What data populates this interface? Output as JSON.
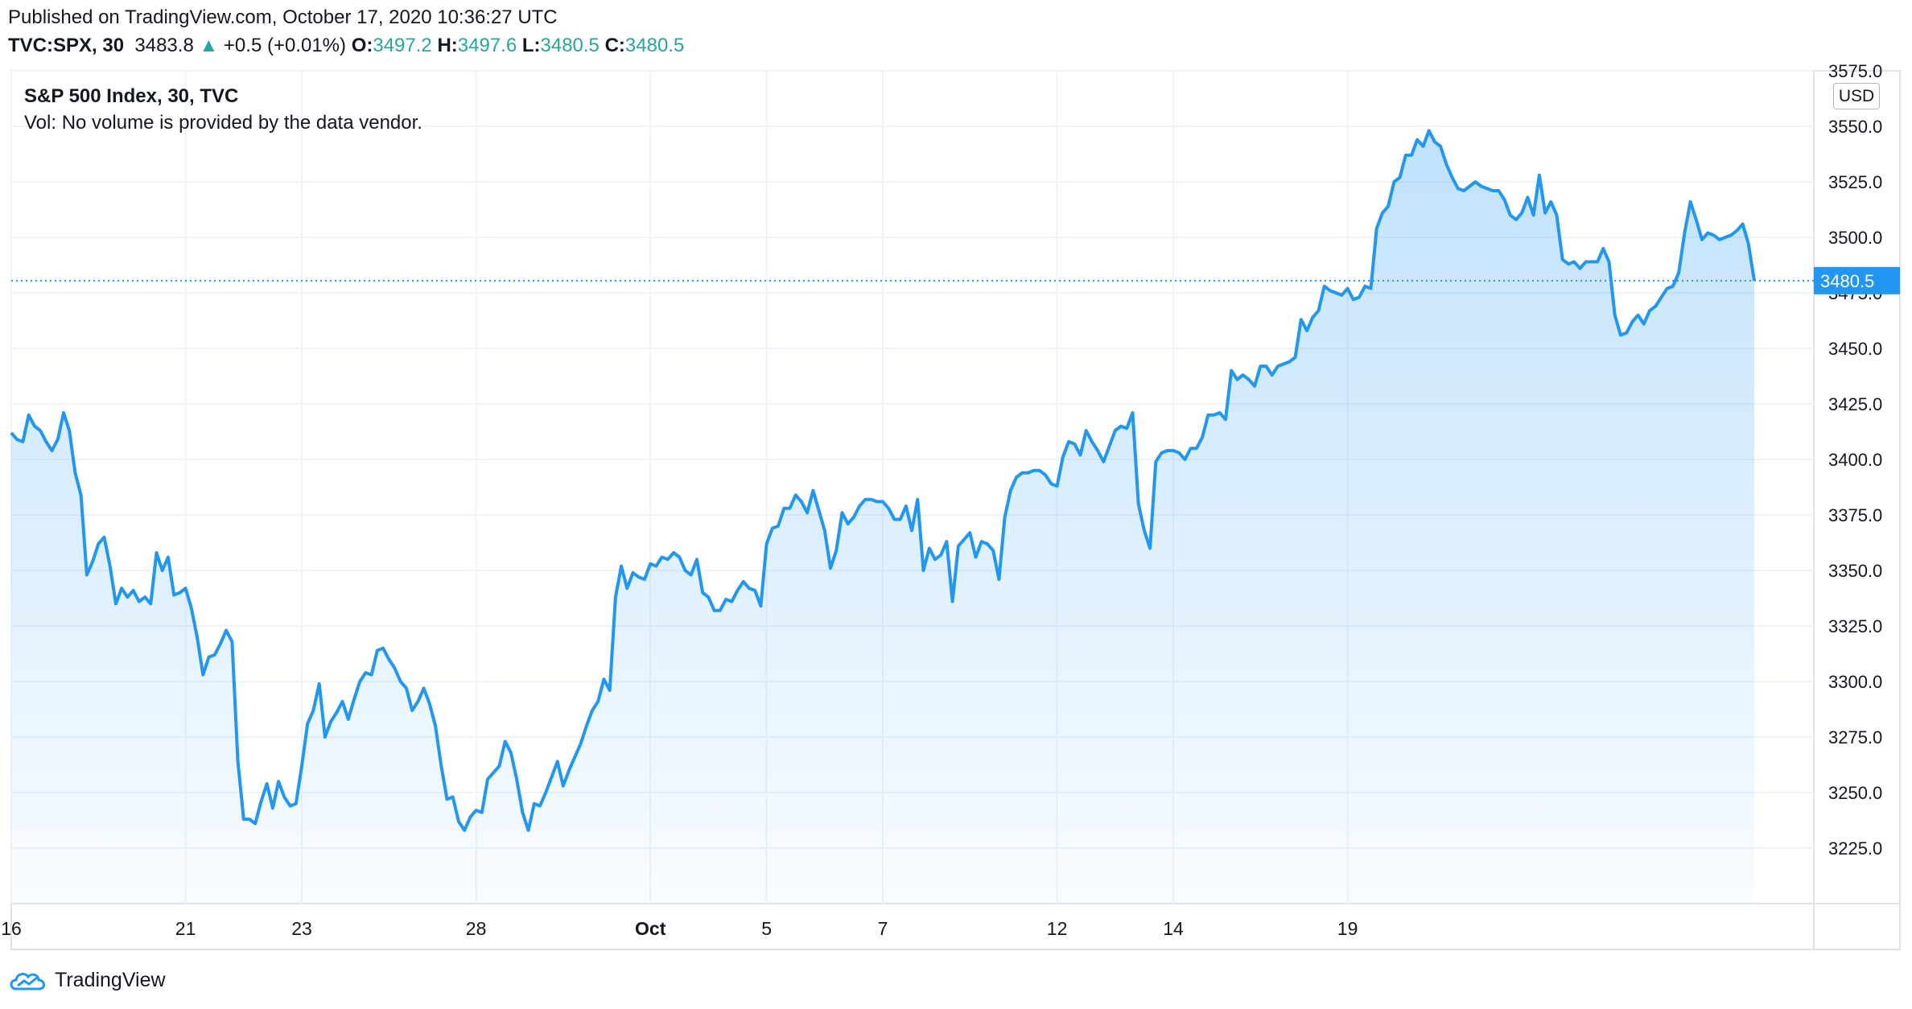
{
  "header": {
    "published": "Published on TradingView.com, October 17, 2020 10:36:27 UTC",
    "symbol": "TVC:SPX, 30",
    "last": "3483.8",
    "change": "+0.5 (+0.01%)",
    "o_label": "O:",
    "o_value": "3497.2",
    "h_label": "H:",
    "h_value": "3497.6",
    "l_label": "L:",
    "l_value": "3480.5",
    "c_label": "C:",
    "c_value": "3480.5"
  },
  "legend": {
    "title": "S&P 500 Index, 30, TVC",
    "volume": "Vol: No volume is provided by the data vendor."
  },
  "currency": "USD",
  "brand": "TradingView",
  "colors": {
    "line": "#2196f3",
    "fill": "#2196f3",
    "grid": "#f0f3fa",
    "up": "#26a69a",
    "text": "#131722"
  },
  "chart_data": {
    "type": "area",
    "ylim": [
      3200,
      3575
    ],
    "y_ticks": [
      "3225.0",
      "3250.0",
      "3275.0",
      "3300.0",
      "3325.0",
      "3350.0",
      "3375.0",
      "3400.0",
      "3425.0",
      "3450.0",
      "3475.0",
      "3500.0",
      "3525.0",
      "3550.0",
      "3575.0"
    ],
    "x_ticks": [
      {
        "label": "16",
        "i": 0
      },
      {
        "label": "21",
        "i": 30
      },
      {
        "label": "23",
        "i": 50
      },
      {
        "label": "28",
        "i": 80
      },
      {
        "label": "Oct",
        "i": 110
      },
      {
        "label": "5",
        "i": 130
      },
      {
        "label": "7",
        "i": 150
      },
      {
        "label": "12",
        "i": 180
      },
      {
        "label": "14",
        "i": 200
      },
      {
        "label": "19",
        "i": 230
      }
    ],
    "last_price": 3480.5,
    "last_price_label": "3480.5",
    "series": [
      {
        "values": [
          3412,
          3409,
          3408,
          3420,
          3415,
          3413,
          3408,
          3404,
          3409,
          3421,
          3413,
          3394,
          3384,
          3348,
          3354,
          3362,
          3365,
          3352,
          3335,
          3342,
          3338,
          3341,
          3336,
          3338,
          3335,
          3358,
          3350,
          3356,
          3339,
          3340,
          3342,
          3333,
          3320,
          3303,
          3311,
          3312,
          3317,
          3323,
          3318,
          3264,
          3238,
          3238,
          3236,
          3246,
          3254,
          3243,
          3255,
          3248,
          3244,
          3245,
          3262,
          3281,
          3287,
          3299,
          3275,
          3282,
          3286,
          3291,
          3283,
          3292,
          3300,
          3304,
          3303,
          3314,
          3315,
          3310,
          3306,
          3300,
          3297,
          3287,
          3291,
          3297,
          3290,
          3280,
          3262,
          3247,
          3248,
          3237,
          3233,
          3239,
          3242,
          3241,
          3256,
          3259,
          3262,
          3273,
          3268,
          3256,
          3241,
          3233,
          3245,
          3244,
          3250,
          3257,
          3264,
          3253,
          3260,
          3266,
          3272,
          3280,
          3287,
          3291,
          3301,
          3296,
          3338,
          3352,
          3342,
          3349,
          3347,
          3346,
          3353,
          3352,
          3356,
          3355,
          3358,
          3356,
          3350,
          3348,
          3355,
          3340,
          3338,
          3332,
          3332,
          3337,
          3336,
          3341,
          3345,
          3342,
          3341,
          3334,
          3362,
          3369,
          3370,
          3378,
          3378,
          3384,
          3381,
          3376,
          3386,
          3377,
          3368,
          3351,
          3359,
          3376,
          3371,
          3374,
          3379,
          3382,
          3382,
          3381,
          3381,
          3378,
          3373,
          3373,
          3379,
          3368,
          3382,
          3350,
          3360,
          3355,
          3357,
          3363,
          3336,
          3361,
          3364,
          3367,
          3356,
          3363,
          3362,
          3359,
          3346,
          3374,
          3386,
          3392,
          3394,
          3394,
          3395,
          3395,
          3393,
          3389,
          3388,
          3401,
          3408,
          3407,
          3402,
          3413,
          3408,
          3404,
          3399,
          3406,
          3413,
          3415,
          3414,
          3421,
          3380,
          3368,
          3360,
          3399,
          3403,
          3404,
          3404,
          3403,
          3400,
          3405,
          3405,
          3410,
          3420,
          3420,
          3421,
          3418,
          3440,
          3436,
          3438,
          3436,
          3433,
          3442,
          3442,
          3438,
          3442,
          3443,
          3444,
          3446,
          3463,
          3458,
          3464,
          3467,
          3478,
          3476,
          3475,
          3474,
          3477,
          3472,
          3473,
          3478,
          3477,
          3504,
          3511,
          3514,
          3525,
          3527,
          3537,
          3537,
          3544,
          3541,
          3548,
          3543,
          3541,
          3533,
          3527,
          3522,
          3521,
          3523,
          3525,
          3523,
          3522,
          3521,
          3521,
          3517,
          3510,
          3508,
          3511,
          3518,
          3510,
          3528,
          3511,
          3516,
          3510,
          3490,
          3488,
          3489,
          3486,
          3489,
          3489,
          3489,
          3495,
          3489,
          3465,
          3456,
          3457,
          3462,
          3465,
          3461,
          3467,
          3469,
          3473,
          3477,
          3478,
          3484,
          3502,
          3516,
          3508,
          3499,
          3502,
          3501,
          3499,
          3500,
          3501,
          3503,
          3506,
          3497,
          3480.5
        ]
      }
    ]
  }
}
